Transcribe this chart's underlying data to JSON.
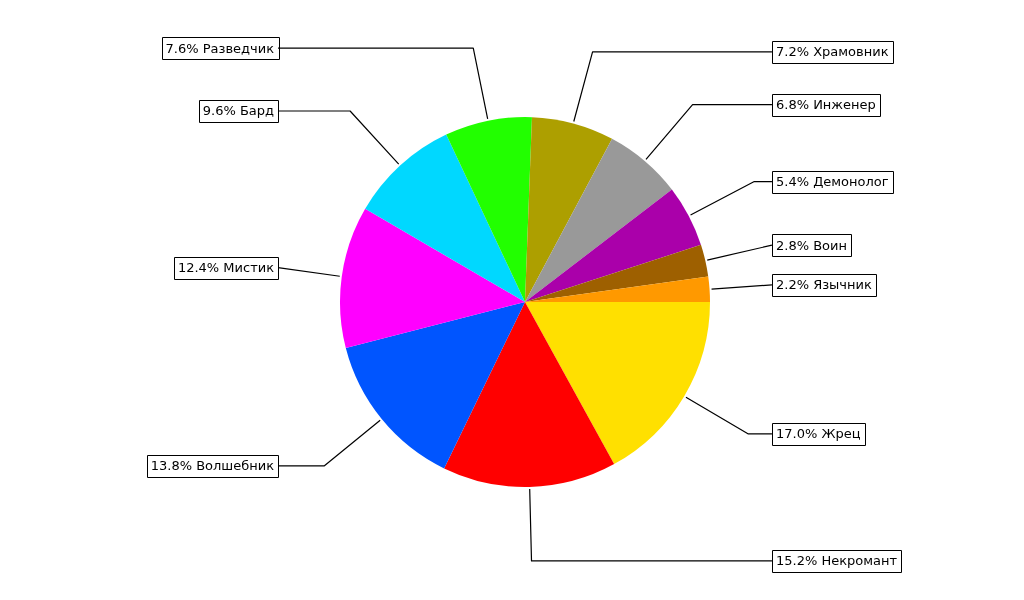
{
  "chart_data": {
    "type": "pie",
    "categories": [
      "Жрец",
      "Некромант",
      "Волшебник",
      "Мистик",
      "Бард",
      "Разведчик",
      "Храмовник",
      "Инженер",
      "Демонолог",
      "Воин",
      "Язычник"
    ],
    "values": [
      17.0,
      15.2,
      13.8,
      12.4,
      9.6,
      7.6,
      7.2,
      6.8,
      5.4,
      2.8,
      2.2
    ],
    "colors": [
      "#ffe000",
      "#ff0000",
      "#0055ff",
      "#ff00ff",
      "#00d8ff",
      "#22ff00",
      "#ad9f00",
      "#999999",
      "#aa00aa",
      "#9e6000",
      "#ff9900"
    ],
    "value_labels": [
      "17.0%",
      "15.2%",
      "13.8%",
      "12.4%",
      "9.6%",
      "7.6%",
      "7.2%",
      "6.8%",
      "5.4%",
      "2.8%",
      "2.2%"
    ]
  }
}
